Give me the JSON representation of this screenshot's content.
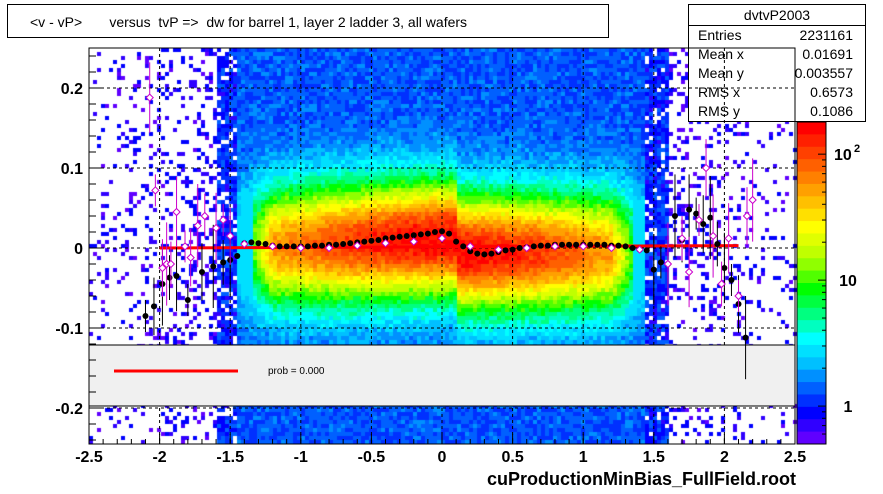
{
  "title": "<v - vP>       versus  tvP =>  dw for barrel 1, layer 2 ladder 3, all wafers",
  "stats": {
    "name": "dvtvP2003",
    "rows": [
      {
        "key": "Entries",
        "value": "2231161"
      },
      {
        "key": "Mean x",
        "value": "0.01691"
      },
      {
        "key": "Mean y",
        "value": "0.003557"
      },
      {
        "key": "RMS x",
        "value": "0.6573"
      },
      {
        "key": "RMS y",
        "value": "0.1086"
      }
    ]
  },
  "legend": {
    "text": "prob = 0.000",
    "line_color": "#ff0000"
  },
  "footer": "cuProductionMinBias_FullField.root",
  "chart_data": {
    "type": "heatmap",
    "xlim": [
      -2.5,
      2.5
    ],
    "ylim": [
      -0.245,
      0.25
    ],
    "x_ticks": [
      -2.5,
      -2,
      -1.5,
      -1,
      -0.5,
      0,
      0.5,
      1,
      1.5,
      2,
      2.5
    ],
    "x_tick_labels": [
      "-2.5",
      "-2",
      "-1.5",
      "-1",
      "-0.5",
      "0",
      "0.5",
      "1",
      "1.5",
      "2",
      "2.5"
    ],
    "y_ticks": [
      -0.2,
      -0.1,
      0,
      0.1,
      0.2
    ],
    "y_tick_labels": [
      "-0.2",
      "-0.1",
      "0",
      "0.1",
      "0.2"
    ],
    "grid": true,
    "color_scale": {
      "type": "log",
      "tick_labels": [
        "1",
        "10",
        "10^2"
      ],
      "tick_values": [
        1,
        10,
        100
      ]
    },
    "fit_line": {
      "x": [
        -2.0,
        2.1
      ],
      "y": [
        0.0,
        0.003
      ],
      "color": "#ff0000"
    },
    "series": [
      {
        "marker": "filled-circle",
        "color": "#000000",
        "points": [
          [
            -2.1,
            -0.085
          ],
          [
            -2.04,
            -0.073
          ],
          [
            -1.98,
            -0.045
          ],
          [
            -1.93,
            -0.037
          ],
          [
            -1.88,
            -0.035
          ],
          [
            -1.8,
            -0.065
          ],
          [
            -1.7,
            -0.03
          ],
          [
            -1.62,
            -0.023
          ],
          [
            -1.55,
            -0.018
          ],
          [
            -1.5,
            -0.015
          ],
          [
            -1.45,
            -0.01
          ],
          [
            -1.4,
            0.006
          ],
          [
            -1.35,
            0.007
          ],
          [
            -1.3,
            0.006
          ],
          [
            -1.25,
            0.005
          ],
          [
            -1.2,
            0.003
          ],
          [
            -1.15,
            0.002
          ],
          [
            -1.1,
            0.002
          ],
          [
            -1.05,
            0.002
          ],
          [
            -1.0,
            0.002
          ],
          [
            -0.95,
            0.002
          ],
          [
            -0.9,
            0.003
          ],
          [
            -0.85,
            0.003
          ],
          [
            -0.8,
            0.004
          ],
          [
            -0.75,
            0.004
          ],
          [
            -0.7,
            0.005
          ],
          [
            -0.65,
            0.006
          ],
          [
            -0.6,
            0.007
          ],
          [
            -0.55,
            0.008
          ],
          [
            -0.5,
            0.009
          ],
          [
            -0.45,
            0.01
          ],
          [
            -0.4,
            0.012
          ],
          [
            -0.35,
            0.013
          ],
          [
            -0.3,
            0.014
          ],
          [
            -0.25,
            0.015
          ],
          [
            -0.2,
            0.016
          ],
          [
            -0.15,
            0.017
          ],
          [
            -0.1,
            0.018
          ],
          [
            -0.05,
            0.02
          ],
          [
            0.0,
            0.021
          ],
          [
            0.05,
            0.018
          ],
          [
            0.1,
            0.008
          ],
          [
            0.15,
            0.002
          ],
          [
            0.2,
            -0.004
          ],
          [
            0.25,
            -0.007
          ],
          [
            0.3,
            -0.008
          ],
          [
            0.35,
            -0.007
          ],
          [
            0.4,
            -0.005
          ],
          [
            0.45,
            -0.003
          ],
          [
            0.5,
            -0.002
          ],
          [
            0.55,
            0.0
          ],
          [
            0.6,
            0.001
          ],
          [
            0.65,
            0.002
          ],
          [
            0.7,
            0.003
          ],
          [
            0.75,
            0.003
          ],
          [
            0.8,
            0.004
          ],
          [
            0.85,
            0.004
          ],
          [
            0.9,
            0.004
          ],
          [
            0.95,
            0.004
          ],
          [
            1.0,
            0.004
          ],
          [
            1.05,
            0.004
          ],
          [
            1.1,
            0.004
          ],
          [
            1.15,
            0.004
          ],
          [
            1.2,
            0.003
          ],
          [
            1.25,
            0.003
          ],
          [
            1.3,
            0.002
          ],
          [
            1.35,
            0.0
          ],
          [
            1.4,
            -0.002
          ],
          [
            1.45,
            -0.003
          ],
          [
            1.5,
            -0.027
          ],
          [
            1.55,
            -0.018
          ],
          [
            1.6,
            -0.02
          ],
          [
            1.65,
            0.04
          ],
          [
            1.7,
            0.01
          ],
          [
            1.75,
            0.048
          ],
          [
            1.8,
            0.043
          ],
          [
            1.85,
            0.03
          ],
          [
            1.9,
            0.038
          ],
          [
            1.95,
            0.005
          ],
          [
            2.0,
            -0.025
          ],
          [
            2.05,
            -0.04
          ],
          [
            2.1,
            -0.07
          ],
          [
            2.15,
            -0.112
          ]
        ]
      },
      {
        "marker": "open-diamond",
        "color": "#cc00cc",
        "points": [
          [
            -2.07,
            0.188
          ],
          [
            -2.03,
            0.072
          ],
          [
            -1.98,
            -0.025
          ],
          [
            -1.95,
            -0.02
          ],
          [
            -1.92,
            -0.02
          ],
          [
            -1.88,
            0.045
          ],
          [
            -1.82,
            0.002
          ],
          [
            -1.78,
            -0.012
          ],
          [
            -1.73,
            0.028
          ],
          [
            -1.68,
            0.04
          ],
          [
            -1.6,
            0.025
          ],
          [
            -1.55,
            0.035
          ],
          [
            -1.5,
            0.015
          ],
          [
            -1.4,
            0.005
          ],
          [
            -1.2,
            0.002
          ],
          [
            -1.0,
            0.0
          ],
          [
            -0.8,
            0.0
          ],
          [
            -0.6,
            0.003
          ],
          [
            -0.4,
            0.006
          ],
          [
            -0.2,
            0.008
          ],
          [
            0.0,
            0.012
          ],
          [
            0.2,
            0.002
          ],
          [
            0.4,
            -0.002
          ],
          [
            0.6,
            0.0
          ],
          [
            0.8,
            0.002
          ],
          [
            1.0,
            0.002
          ],
          [
            1.2,
            0.0
          ],
          [
            1.4,
            -0.002
          ],
          [
            1.6,
            -0.02
          ],
          [
            1.7,
            0.012
          ],
          [
            1.75,
            -0.03
          ],
          [
            1.82,
            0.035
          ],
          [
            1.87,
            0.1
          ],
          [
            1.92,
            0.015
          ],
          [
            1.98,
            -0.045
          ],
          [
            2.03,
            0.012
          ],
          [
            2.1,
            -0.06
          ],
          [
            2.16,
            0.04
          ],
          [
            2.2,
            0.06
          ]
        ]
      }
    ]
  }
}
